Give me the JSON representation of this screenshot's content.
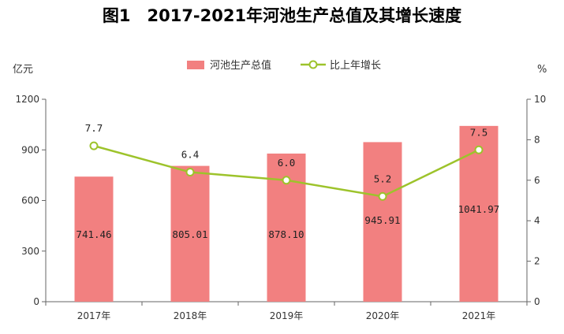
{
  "title": "图1　2017-2021年河池生产总值及其增长速度",
  "chart_data": {
    "type": "bar+line",
    "categories": [
      "2017年",
      "2018年",
      "2019年",
      "2020年",
      "2021年"
    ],
    "series": [
      {
        "name": "河池生产总值",
        "type": "bar",
        "axis": "left",
        "values": [
          741.46,
          805.01,
          878.1,
          945.91,
          1041.97
        ],
        "labels": [
          "741.46",
          "805.01",
          "878.10",
          "945.91",
          "1041.97"
        ],
        "color": "#f28080"
      },
      {
        "name": "比上年增长",
        "type": "line",
        "axis": "right",
        "values": [
          7.7,
          6.4,
          6.0,
          5.2,
          7.5
        ],
        "labels": [
          "7.7",
          "6.4",
          "6.0",
          "5.2",
          "7.5"
        ],
        "color": "#9dc32b"
      }
    ],
    "y_left": {
      "label": "亿元",
      "min": 0,
      "max": 1200,
      "ticks": [
        "0",
        "300",
        "600",
        "900",
        "1200"
      ]
    },
    "y_right": {
      "label": "%",
      "min": 0,
      "max": 10,
      "ticks": [
        "0",
        "2",
        "4",
        "6",
        "8",
        "10"
      ]
    },
    "legend_position": "top-center",
    "grid": false
  }
}
